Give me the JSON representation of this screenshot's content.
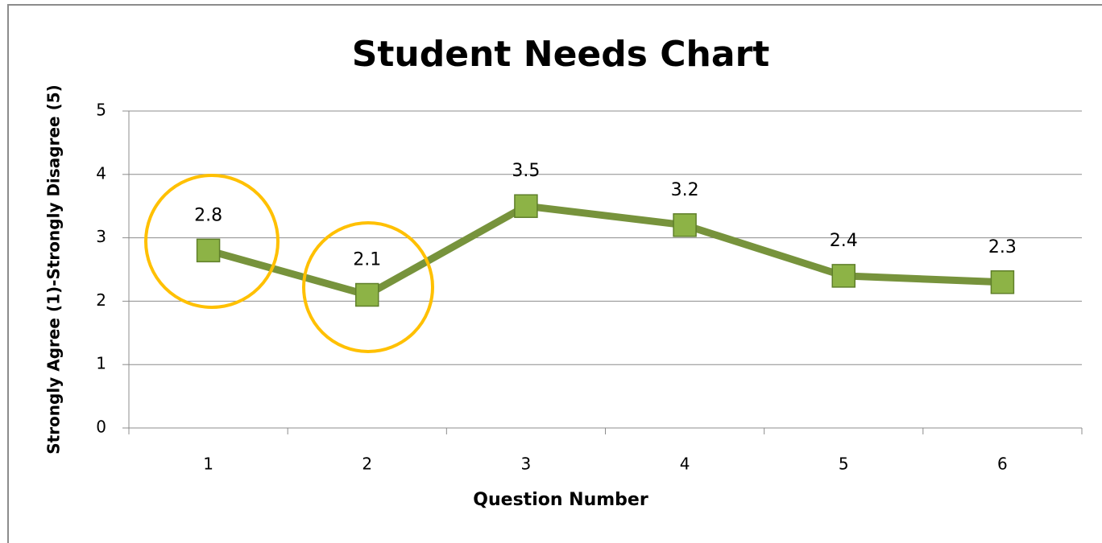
{
  "chart_data": {
    "type": "line",
    "title": "Student Needs Chart",
    "x_label": "Question Number",
    "y_label": "Strongly Agree (1)-Strongly Disagree (5)",
    "categories": [
      "1",
      "2",
      "3",
      "4",
      "5",
      "6"
    ],
    "values": [
      2.8,
      2.1,
      3.5,
      3.2,
      2.4,
      2.3
    ],
    "color": "#77933c",
    "marker_color": "#8db346",
    "ylim": [
      0,
      5
    ],
    "yticks": [
      0,
      1,
      2,
      3,
      4,
      5
    ],
    "grid": true
  }
}
